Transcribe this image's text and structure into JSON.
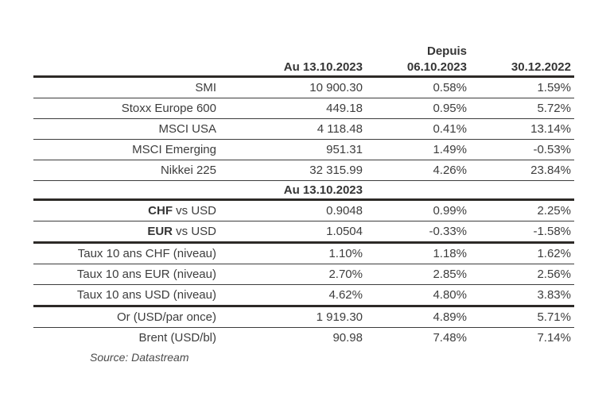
{
  "table": {
    "header": {
      "depuis_label": "Depuis",
      "col_value": "Au 13.10.2023",
      "col_change1": "06.10.2023",
      "col_change2": "30.12.2022"
    },
    "indices": [
      {
        "label": "SMI",
        "value": "10 900.30",
        "change1": "0.58%",
        "change2": "1.59%"
      },
      {
        "label": "Stoxx Europe 600",
        "value": "449.18",
        "change1": "0.95%",
        "change2": "5.72%"
      },
      {
        "label": "MSCI USA",
        "value": "4 118.48",
        "change1": "0.41%",
        "change2": "13.14%"
      },
      {
        "label": "MSCI Emerging",
        "value": "951.31",
        "change1": "1.49%",
        "change2": "-0.53%"
      },
      {
        "label": "Nikkei 225",
        "value": "32 315.99",
        "change1": "4.26%",
        "change2": "23.84%"
      }
    ],
    "subheader": "Au 13.10.2023",
    "currencies": [
      {
        "label_bold": "CHF",
        "label_rest": " vs USD",
        "value": "0.9048",
        "change1": "0.99%",
        "change2": "2.25%"
      },
      {
        "label_bold": "EUR",
        "label_rest": " vs USD",
        "value": "1.0504",
        "change1": "-0.33%",
        "change2": "-1.58%"
      }
    ],
    "rates": [
      {
        "label": "Taux 10 ans CHF (niveau)",
        "value": "1.10%",
        "change1": "1.18%",
        "change2": "1.62%"
      },
      {
        "label": "Taux 10 ans EUR (niveau)",
        "value": "2.70%",
        "change1": "2.85%",
        "change2": "2.56%"
      },
      {
        "label": "Taux 10 ans USD (niveau)",
        "value": "4.62%",
        "change1": "4.80%",
        "change2": "3.83%"
      }
    ],
    "commodities": [
      {
        "label": "Or (USD/par once)",
        "value": "1 919.30",
        "change1": "4.89%",
        "change2": "5.71%"
      },
      {
        "label": "Brent (USD/bl)",
        "value": "90.98",
        "change1": "7.48%",
        "change2": "7.14%"
      }
    ],
    "source": "Source: Datastream"
  },
  "chart_data": {
    "type": "table",
    "title": "",
    "columns": [
      "",
      "Au 13.10.2023",
      "Depuis 06.10.2023",
      "Depuis 30.12.2022"
    ],
    "rows": [
      [
        "SMI",
        "10 900.30",
        "0.58%",
        "1.59%"
      ],
      [
        "Stoxx Europe 600",
        "449.18",
        "0.95%",
        "5.72%"
      ],
      [
        "MSCI USA",
        "4 118.48",
        "0.41%",
        "13.14%"
      ],
      [
        "MSCI Emerging",
        "951.31",
        "1.49%",
        "-0.53%"
      ],
      [
        "Nikkei 225",
        "32 315.99",
        "4.26%",
        "23.84%"
      ],
      [
        "CHF vs USD",
        "0.9048",
        "0.99%",
        "2.25%"
      ],
      [
        "EUR vs USD",
        "1.0504",
        "-0.33%",
        "-1.58%"
      ],
      [
        "Taux 10 ans CHF (niveau)",
        "1.10%",
        "1.18%",
        "1.62%"
      ],
      [
        "Taux 10 ans EUR (niveau)",
        "2.70%",
        "2.85%",
        "2.56%"
      ],
      [
        "Taux 10 ans USD (niveau)",
        "4.62%",
        "4.80%",
        "3.83%"
      ],
      [
        "Or (USD/par once)",
        "1 919.30",
        "4.89%",
        "5.71%"
      ],
      [
        "Brent (USD/bl)",
        "90.98",
        "7.48%",
        "7.14%"
      ]
    ],
    "source": "Source: Datastream"
  }
}
